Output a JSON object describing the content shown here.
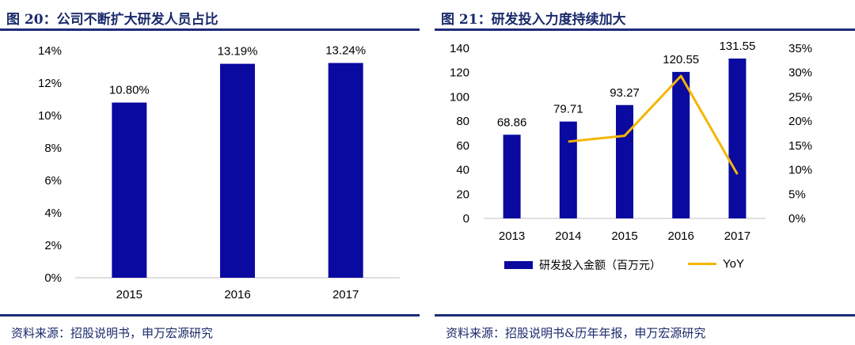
{
  "left": {
    "title": "图 20：公司不断扩大研发人员占比",
    "source": "资料来源：招股说明书，申万宏源研究"
  },
  "right": {
    "title": "图 21：研发投入力度持续加大",
    "source": "资料来源：招股说明书&历年年报，申万宏源研究",
    "legend": {
      "bar_label": "研发投入金额（百万元）",
      "line_label": "YoY"
    }
  },
  "colors": {
    "bar": "#0a0aa0",
    "line": "#f6b500",
    "rule": "#1e2a78"
  },
  "chart_data": [
    {
      "type": "bar",
      "categories": [
        "2015",
        "2016",
        "2017"
      ],
      "values": [
        10.8,
        13.19,
        13.24
      ],
      "data_labels": [
        "10.80%",
        "13.19%",
        "13.24%"
      ],
      "ylim": [
        0,
        14
      ],
      "y_ticks": [
        "0%",
        "2%",
        "4%",
        "6%",
        "8%",
        "10%",
        "12%",
        "14%"
      ],
      "grid": false,
      "legend": null
    },
    {
      "type": "bar",
      "categories": [
        "2013",
        "2014",
        "2015",
        "2016",
        "2017"
      ],
      "series": [
        {
          "name": "研发投入金额（百万元）",
          "type": "bar",
          "axis": "left",
          "values": [
            68.86,
            79.71,
            93.27,
            120.55,
            131.55
          ],
          "data_labels": [
            "68.86",
            "79.71",
            "93.27",
            "120.55",
            "131.55"
          ]
        },
        {
          "name": "YoY",
          "type": "line",
          "axis": "right",
          "values": [
            null,
            15.8,
            17.0,
            29.3,
            9.1
          ]
        }
      ],
      "ylim": [
        0,
        140
      ],
      "y_ticks": [
        "0",
        "20",
        "40",
        "60",
        "80",
        "100",
        "120",
        "140"
      ],
      "y2lim": [
        0,
        35
      ],
      "y2_ticks": [
        "0%",
        "5%",
        "10%",
        "15%",
        "20%",
        "25%",
        "30%",
        "35%"
      ],
      "grid": false,
      "legend": "bottom"
    }
  ]
}
